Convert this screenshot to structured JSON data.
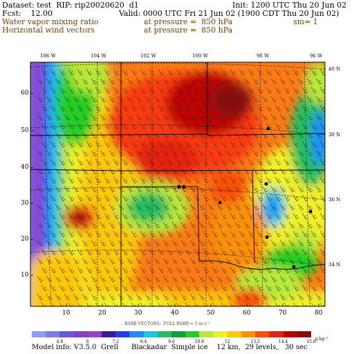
{
  "header": {
    "dataset": "Dataset: test  RIP: rip20020620  d1",
    "init": "Init: 1200 UTC Thu 20 Jun 02",
    "fcst": "Fcst:    12.00",
    "valid": "Valid: 0000 UTC Fri 21 Jun 02 (1900 CDT Thu 20 Jun 02)",
    "field1": "Water vapor mixing ratio",
    "field1_level": "at pressure =  850 hPa",
    "sm": "sm= 1",
    "field2": "Horizontal wind vectors",
    "field2_level": "at pressure =  850 hPa"
  },
  "map": {
    "top_lon_labels": [
      "106 W",
      "104 W",
      "102 W",
      "100 W",
      "98 W",
      "96 W"
    ],
    "right_lat_labels": [
      "40 N",
      "38 N",
      "36 N",
      "34 N"
    ],
    "left_grid_labels": [
      "60",
      "50",
      "40",
      "30",
      "20",
      "10"
    ],
    "bottom_grid_labels": [
      "10",
      "20",
      "30",
      "40",
      "50",
      "60",
      "70",
      "80"
    ]
  },
  "legend": {
    "barb_title": "BARB VECTORS:  FULL BARB = 5 m s⁻¹",
    "colorbar_labels": [
      "4.8",
      "6",
      "7.2",
      "8.4",
      "9.6",
      "10.8",
      "12",
      "13.2",
      "14.4",
      "15.6"
    ],
    "units": "g kg⁻¹",
    "colors": [
      "#8f9cff",
      "#7b7bf0",
      "#6a55e0",
      "#8a3ec8",
      "#a23cc0",
      "#3a1aa0",
      "#1e3cff",
      "#1e8cff",
      "#18c8e8",
      "#20c060",
      "#10a040",
      "#20d020",
      "#b8e838",
      "#f0f020",
      "#ffc800",
      "#ff9000",
      "#ff5000",
      "#e82010",
      "#c00000",
      "#8a0a0a"
    ]
  },
  "footer": "Model info: V3.5.0  Grell      Blackadar  Simple ice    12 km,  29 levels,   30 sec"
}
